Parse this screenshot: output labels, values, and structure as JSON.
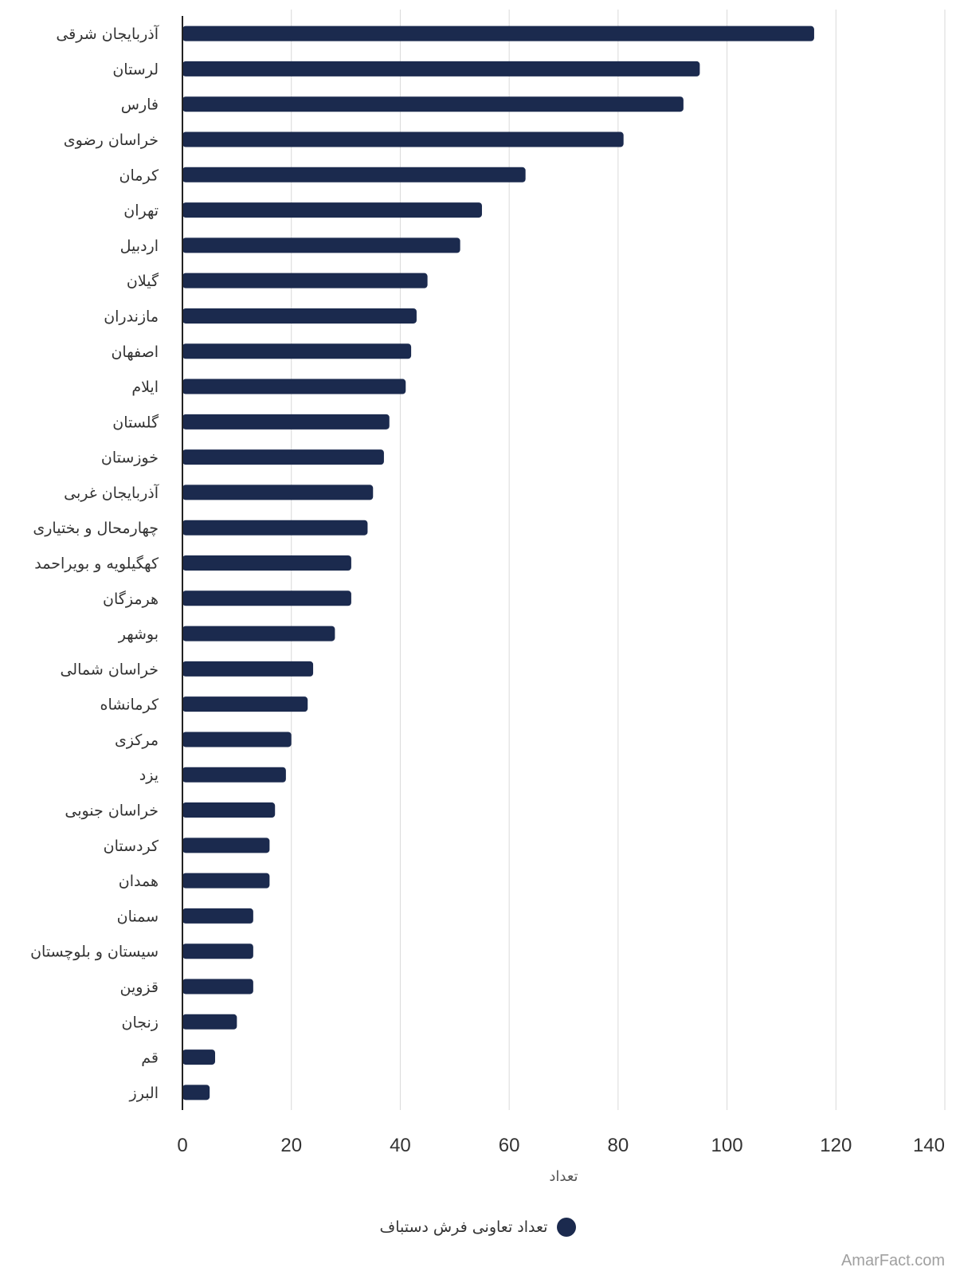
{
  "chart_data": {
    "type": "bar",
    "orientation": "horizontal",
    "categories": [
      "آذربایجان شرقی",
      "لرستان",
      "فارس",
      "خراسان رضوی",
      "کرمان",
      "تهران",
      "اردبیل",
      "گیلان",
      "مازندران",
      "اصفهان",
      "ایلام",
      "گلستان",
      "خوزستان",
      "آذربایجان غربی",
      "چهارمحال و بختیاری",
      "کهگیلویه و بویراحمد",
      "هرمزگان",
      "بوشهر",
      "خراسان شمالی",
      "کرمانشاه",
      "مرکزی",
      "یزد",
      "خراسان جنوبی",
      "کردستان",
      "همدان",
      "سمنان",
      "سیستان و بلوچستان",
      "قزوین",
      "زنجان",
      "قم",
      "البرز"
    ],
    "series": [
      {
        "name": "تعداد تعاونی فرش دستباف",
        "color": "#1b2a4e",
        "values": [
          116,
          95,
          92,
          81,
          63,
          55,
          51,
          45,
          43,
          42,
          41,
          38,
          37,
          35,
          34,
          31,
          31,
          28,
          24,
          23,
          20,
          19,
          17,
          16,
          16,
          13,
          13,
          13,
          10,
          6,
          5
        ]
      }
    ],
    "xlabel": "تعداد",
    "xlim": [
      0,
      140
    ],
    "xticks": [
      0,
      20,
      40,
      60,
      80,
      100,
      120,
      140
    ],
    "grid": true,
    "legend_position": "bottom"
  },
  "watermark": "AmarFact.com"
}
